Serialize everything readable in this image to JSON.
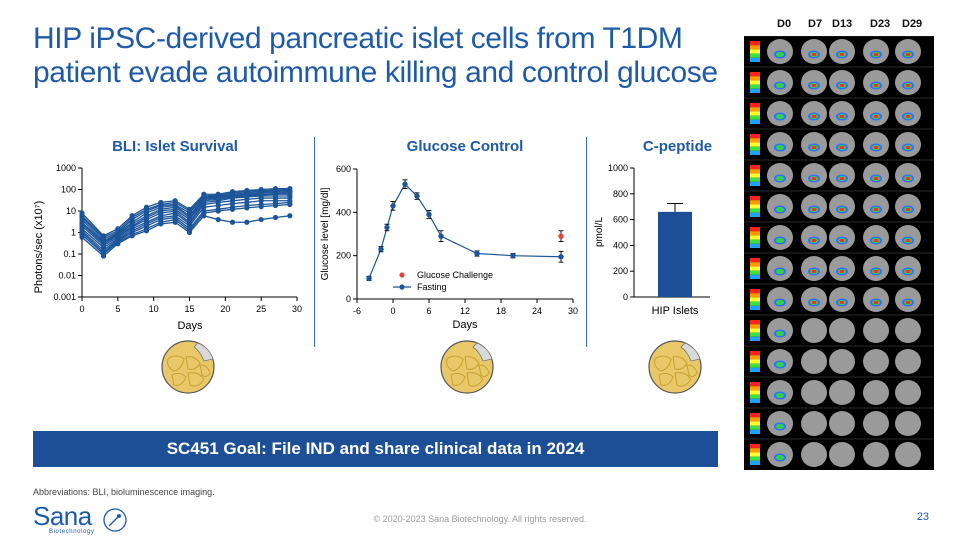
{
  "title": {
    "line1": "HIP iPSC-derived pancreatic islet cells from T1DM",
    "line2": "patient evade autoimmune killing and control glucose"
  },
  "panels": {
    "bli_title": "BLI: Islet Survival",
    "glucose_title": "Glucose Control",
    "cpeptide_title": "C-peptide"
  },
  "goal_banner": "SC451 Goal: File IND and share clinical data in 2024",
  "abbreviations": "Abbreviations: BLI, bioluminescence imaging.",
  "copyright": "© 2020-2023 Sana Biotechnology. All rights reserved.",
  "page_number": "23",
  "logo": {
    "name": "Sana",
    "subtitle": "Biotechnology"
  },
  "bli_image": {
    "day_labels": [
      "D0",
      "D7",
      "D13",
      "D23",
      "D29"
    ],
    "rows": 14
  },
  "chart_data": [
    {
      "type": "line",
      "title": "BLI: Islet Survival",
      "xlabel": "Days",
      "ylabel": "Photons/sec (x10⁷)",
      "y_scale": "log",
      "xlim": [
        0,
        30
      ],
      "ylim": [
        0.001,
        1000
      ],
      "x_ticks": [
        "0",
        "5",
        "10",
        "15",
        "20",
        "25",
        "30"
      ],
      "y_ticks": [
        "1000",
        "100",
        "10",
        "1",
        "0.1",
        "0.01",
        "0.001"
      ],
      "x": [
        0,
        3,
        5,
        7,
        9,
        11,
        13,
        15,
        17,
        19,
        21,
        23,
        25,
        27,
        29
      ],
      "series": [
        {
          "values": [
            8,
            0.7,
            1.5,
            6,
            15,
            25,
            30,
            12,
            60,
            60,
            80,
            90,
            100,
            110,
            110
          ]
        },
        {
          "values": [
            6,
            0.6,
            1.2,
            5,
            12,
            20,
            25,
            10,
            50,
            55,
            70,
            80,
            90,
            95,
            100
          ]
        },
        {
          "values": [
            5,
            0.5,
            1.0,
            4,
            10,
            18,
            20,
            8,
            45,
            50,
            60,
            70,
            80,
            85,
            90
          ]
        },
        {
          "values": [
            4,
            0.4,
            0.9,
            3,
            8,
            15,
            18,
            6,
            40,
            45,
            55,
            60,
            70,
            75,
            80
          ]
        },
        {
          "values": [
            3,
            0.35,
            0.8,
            2.5,
            6,
            12,
            15,
            5,
            35,
            40,
            50,
            55,
            60,
            65,
            70
          ]
        },
        {
          "values": [
            2.5,
            0.3,
            0.7,
            2,
            5,
            10,
            12,
            4,
            30,
            35,
            45,
            50,
            55,
            60,
            60
          ]
        },
        {
          "values": [
            2,
            0.25,
            0.6,
            1.8,
            4,
            8,
            10,
            3,
            25,
            30,
            40,
            45,
            50,
            50,
            50
          ]
        },
        {
          "values": [
            1.5,
            0.2,
            0.5,
            1.5,
            3,
            6,
            8,
            2.5,
            20,
            25,
            30,
            35,
            40,
            40,
            40
          ]
        },
        {
          "values": [
            1.2,
            0.15,
            0.45,
            1.2,
            2.5,
            5,
            6,
            2,
            15,
            18,
            22,
            25,
            30,
            30,
            30
          ]
        },
        {
          "values": [
            1,
            0.12,
            0.4,
            1,
            2,
            4,
            5,
            1.5,
            10,
            12,
            15,
            18,
            20,
            22,
            25
          ]
        },
        {
          "values": [
            0.8,
            0.1,
            0.35,
            0.8,
            1.5,
            3,
            4,
            1.2,
            8,
            10,
            12,
            14,
            16,
            18,
            20
          ]
        },
        {
          "values": [
            0.6,
            0.08,
            0.3,
            0.7,
            1.2,
            2.5,
            3,
            1,
            6,
            4,
            3,
            3,
            4,
            5,
            6
          ]
        }
      ]
    },
    {
      "type": "line",
      "title": "Glucose Control",
      "xlabel": "Days",
      "ylabel": "Glucose level [mg/dl]",
      "xlim": [
        -6,
        30
      ],
      "ylim": [
        0,
        600
      ],
      "x_ticks": [
        "-6",
        "0",
        "6",
        "12",
        "18",
        "24",
        "30"
      ],
      "y_ticks": [
        "600",
        "400",
        "200",
        "0"
      ],
      "legend": [
        "Glucose Challenge",
        "Fasting"
      ],
      "series": [
        {
          "name": "Fasting",
          "x": [
            -4,
            -2,
            -1,
            0,
            2,
            4,
            6,
            8,
            14,
            20,
            28
          ],
          "values": [
            95,
            230,
            330,
            430,
            530,
            475,
            390,
            290,
            210,
            200,
            195
          ],
          "error": [
            10,
            12,
            15,
            20,
            20,
            15,
            18,
            25,
            12,
            10,
            25
          ]
        },
        {
          "name": "Glucose Challenge",
          "x": [
            28
          ],
          "values": [
            290
          ],
          "error": [
            25
          ]
        }
      ]
    },
    {
      "type": "bar",
      "title": "C-peptide",
      "ylabel": "pmol/L",
      "ylim": [
        0,
        1000
      ],
      "y_ticks": [
        "1000",
        "800",
        "600",
        "400",
        "200",
        "0"
      ],
      "categories": [
        "HIP Islets"
      ],
      "values": [
        660
      ],
      "error": [
        65
      ]
    }
  ],
  "colors": {
    "brand_blue": "#1f5aa8",
    "series_blue": "#1c5599",
    "challenge_red": "#e0463c",
    "banner_bg": "#1c4f96"
  }
}
